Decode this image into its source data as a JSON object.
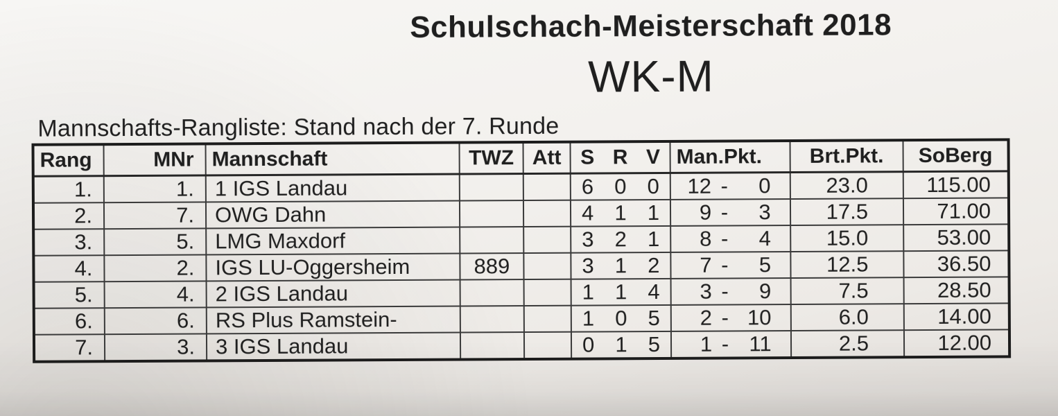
{
  "header": {
    "title": "Schulschach-Meisterschaft 2018",
    "category": "WK-M",
    "caption": "Mannschafts-Rangliste: Stand nach der 7. Runde"
  },
  "table": {
    "headers": {
      "rang": "Rang",
      "mnr": "MNr",
      "mannschaft": "Mannschaft",
      "twz": "TWZ",
      "att": "Att",
      "s": "S",
      "r": "R",
      "v": "V",
      "man_pkt": "Man.Pkt.",
      "brt_pkt": "Brt.Pkt.",
      "soberg": "SoBerg"
    },
    "rows": [
      {
        "rang": "1.",
        "mnr": "1.",
        "team": "1 IGS Landau",
        "twz": "",
        "att": "",
        "s": "6",
        "r": "0",
        "v": "0",
        "man_won": "12",
        "man_sep": "-",
        "man_lost": "0",
        "brt": "23.0",
        "soberg": "115.00"
      },
      {
        "rang": "2.",
        "mnr": "7.",
        "team": "OWG Dahn",
        "twz": "",
        "att": "",
        "s": "4",
        "r": "1",
        "v": "1",
        "man_won": "9",
        "man_sep": "-",
        "man_lost": "3",
        "brt": "17.5",
        "soberg": "71.00"
      },
      {
        "rang": "3.",
        "mnr": "5.",
        "team": "LMG Maxdorf",
        "twz": "",
        "att": "",
        "s": "3",
        "r": "2",
        "v": "1",
        "man_won": "8",
        "man_sep": "-",
        "man_lost": "4",
        "brt": "15.0",
        "soberg": "53.00"
      },
      {
        "rang": "4.",
        "mnr": "2.",
        "team": "IGS LU-Oggersheim",
        "twz": "889",
        "att": "",
        "s": "3",
        "r": "1",
        "v": "2",
        "man_won": "7",
        "man_sep": "-",
        "man_lost": "5",
        "brt": "12.5",
        "soberg": "36.50"
      },
      {
        "rang": "5.",
        "mnr": "4.",
        "team": "2 IGS Landau",
        "twz": "",
        "att": "",
        "s": "1",
        "r": "1",
        "v": "4",
        "man_won": "3",
        "man_sep": "-",
        "man_lost": "9",
        "brt": "7.5",
        "soberg": "28.50"
      },
      {
        "rang": "6.",
        "mnr": "6.",
        "team": "RS Plus Ramstein-",
        "twz": "",
        "att": "",
        "s": "1",
        "r": "0",
        "v": "5",
        "man_won": "2",
        "man_sep": "-",
        "man_lost": "10",
        "brt": "6.0",
        "soberg": "14.00"
      },
      {
        "rang": "7.",
        "mnr": "3.",
        "team": "3 IGS Landau",
        "twz": "",
        "att": "",
        "s": "0",
        "r": "1",
        "v": "5",
        "man_won": "1",
        "man_sep": "-",
        "man_lost": "11",
        "brt": "2.5",
        "soberg": "12.00"
      }
    ]
  },
  "colors": {
    "paper": "#f1efeb",
    "ink": "#1f1f1f",
    "grid": "#3a3a3a"
  }
}
